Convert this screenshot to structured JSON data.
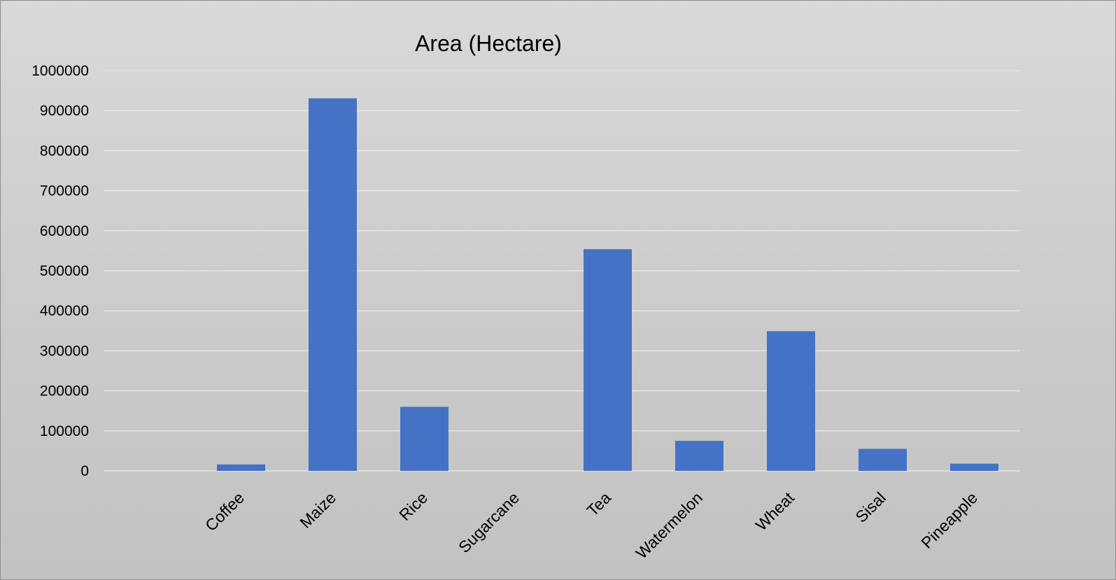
{
  "chart_data": {
    "type": "bar",
    "title": "Area (Hectare)",
    "xlabel": "",
    "ylabel": "",
    "categories": [
      "",
      "Coffee",
      "Maize",
      "Rice",
      "Sugarcane",
      "Tea",
      "Watermelon",
      "Wheat",
      "Sisal",
      "Pineapple"
    ],
    "values": [
      0,
      16000,
      931000,
      160000,
      0,
      554000,
      75000,
      349000,
      55000,
      18000
    ],
    "ylim": [
      0,
      1000000
    ],
    "yticks": [
      "0",
      "100000",
      "200000",
      "300000",
      "400000",
      "500000",
      "600000",
      "700000",
      "800000",
      "900000",
      "1000000"
    ],
    "grid": true,
    "legend": "none",
    "colors": {
      "bar": "#4472c4",
      "gridline": "#e6e6e6"
    }
  }
}
